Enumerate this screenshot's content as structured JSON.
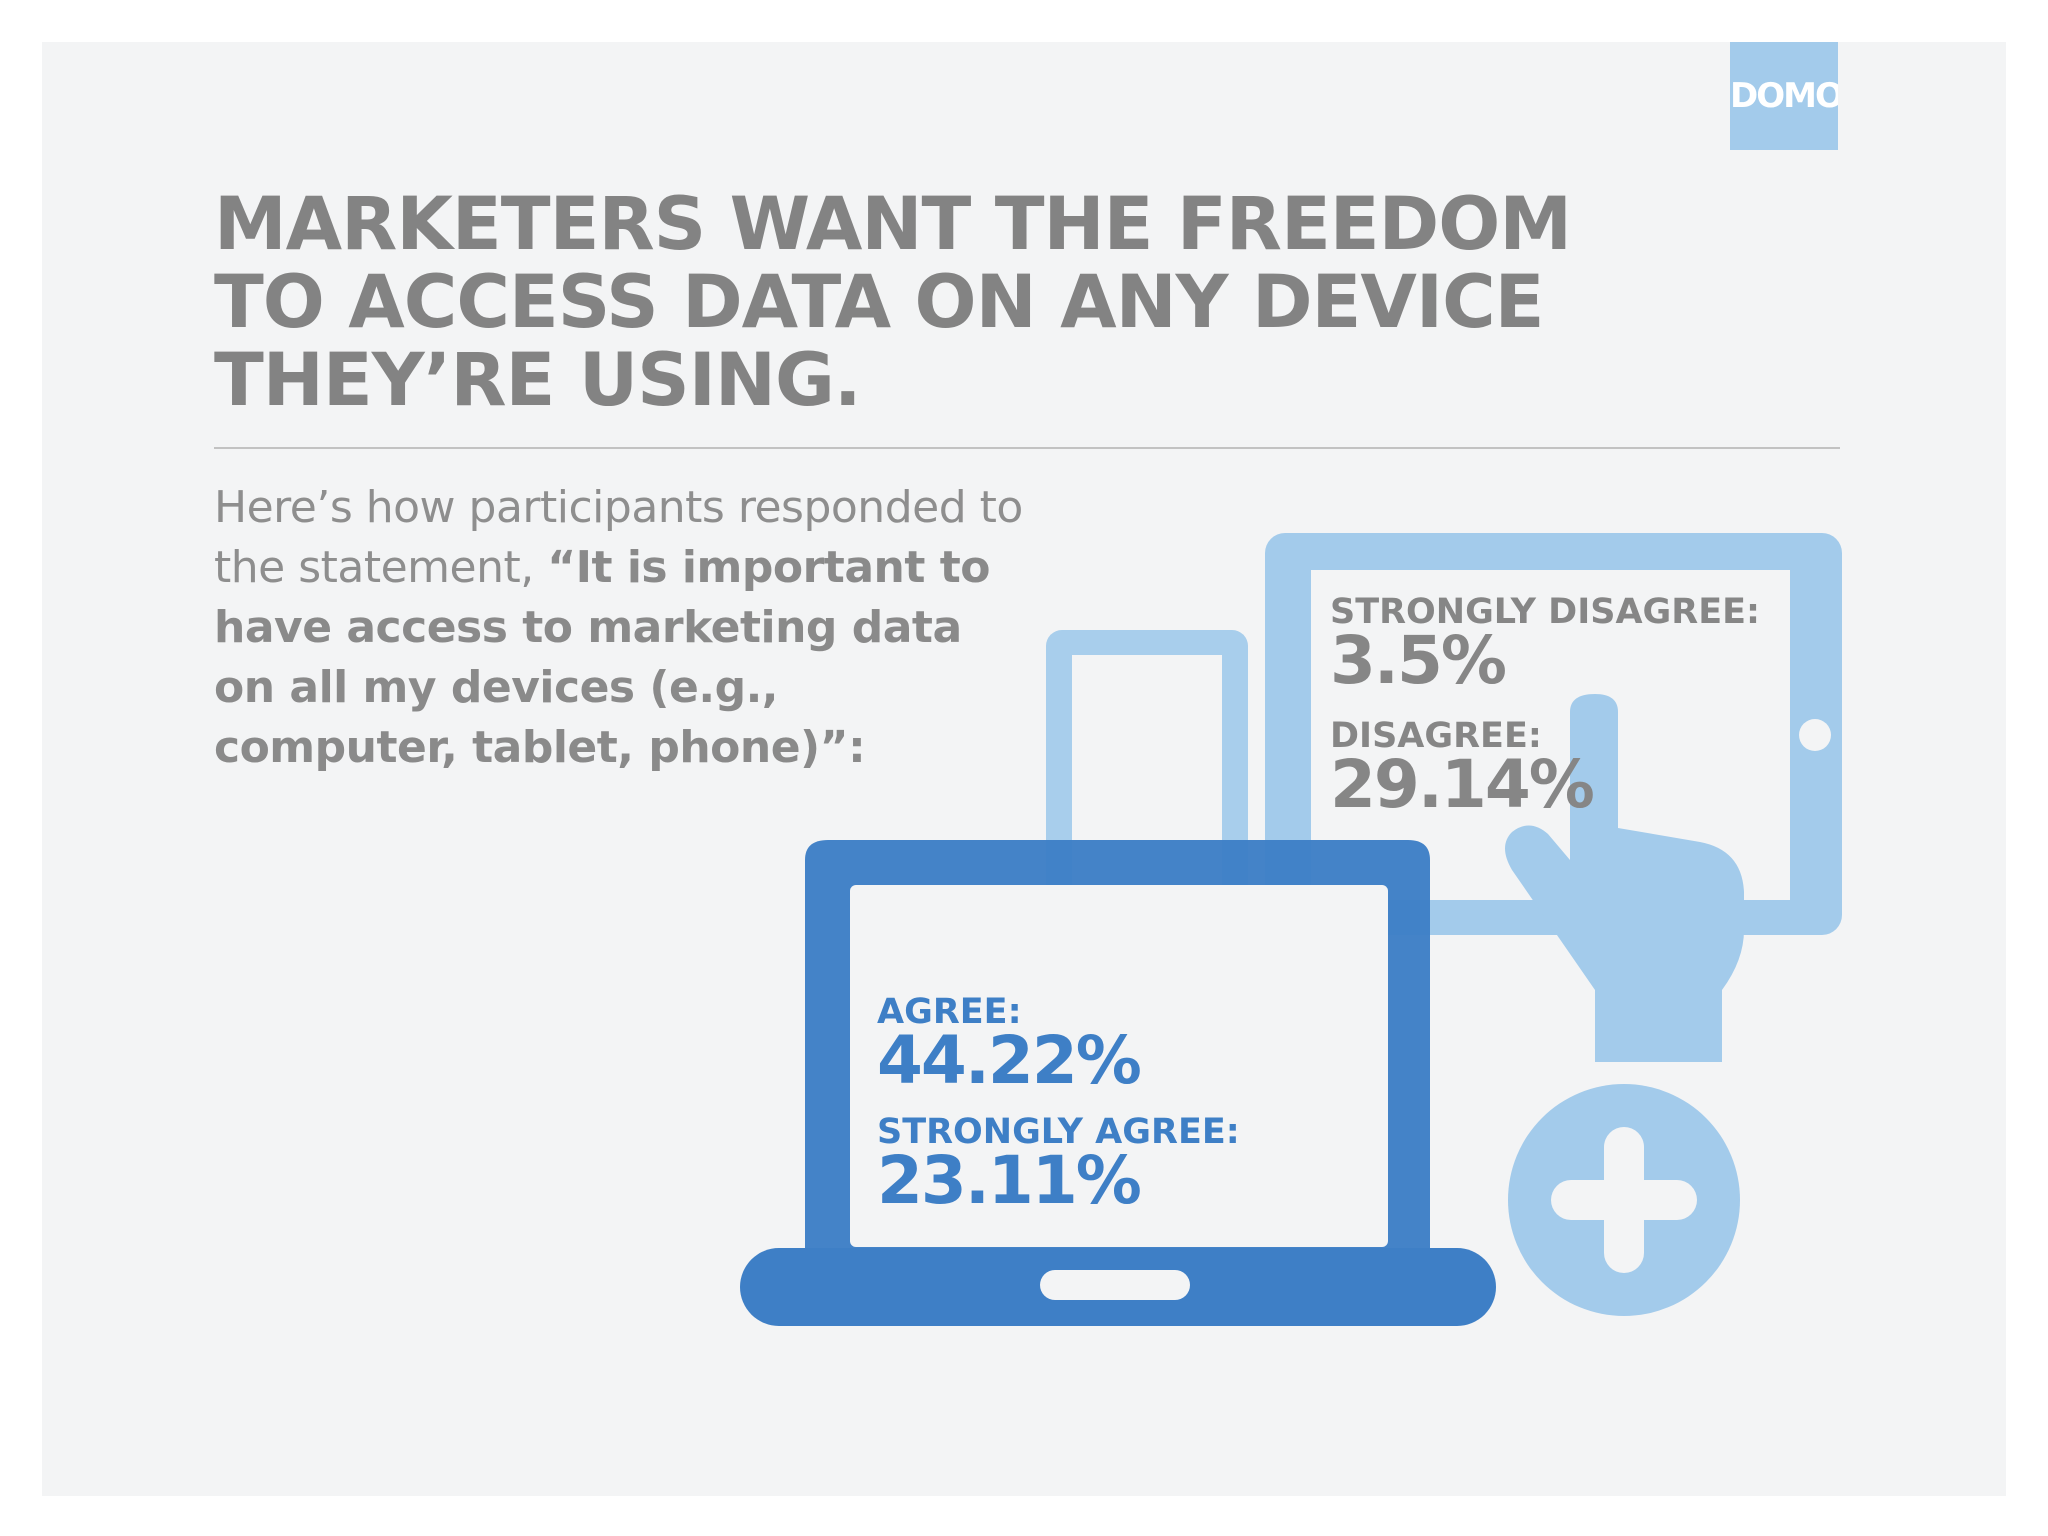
{
  "brand": {
    "logo_text": "DOMO",
    "logo_color": "#a3cbeb"
  },
  "headline": {
    "lines": [
      "MARKETERS WANT THE FREEDOM",
      "TO ACCESS DATA ON ANY DEVICE",
      "THEY’RE USING."
    ]
  },
  "intro": {
    "lead": "Here’s how participants responded to the statement, ",
    "quote": "“It is important to have access to marketing data on all my devices (e.g., computer, tablet, phone)”:"
  },
  "responses": {
    "strongly_disagree": {
      "label": "STRONGLY DISAGREE:",
      "value": "3.5%"
    },
    "disagree": {
      "label": "DISAGREE:",
      "value": "29.14%"
    },
    "agree": {
      "label": "AGREE:",
      "value": "44.22%"
    },
    "strongly_agree": {
      "label": "STRONGLY AGREE:",
      "value": "23.11%"
    }
  },
  "icons": {
    "laptop": "laptop-icon",
    "tablet": "tablet-icon",
    "phone": "phone-icon",
    "hand": "pointing-hand-icon",
    "plus": "plus-circle-icon"
  },
  "colors": {
    "dark_blue": "#3e7fc6",
    "light_blue": "#a3cbeb",
    "text_gray": "#868686",
    "background": "#f3f4f5"
  }
}
